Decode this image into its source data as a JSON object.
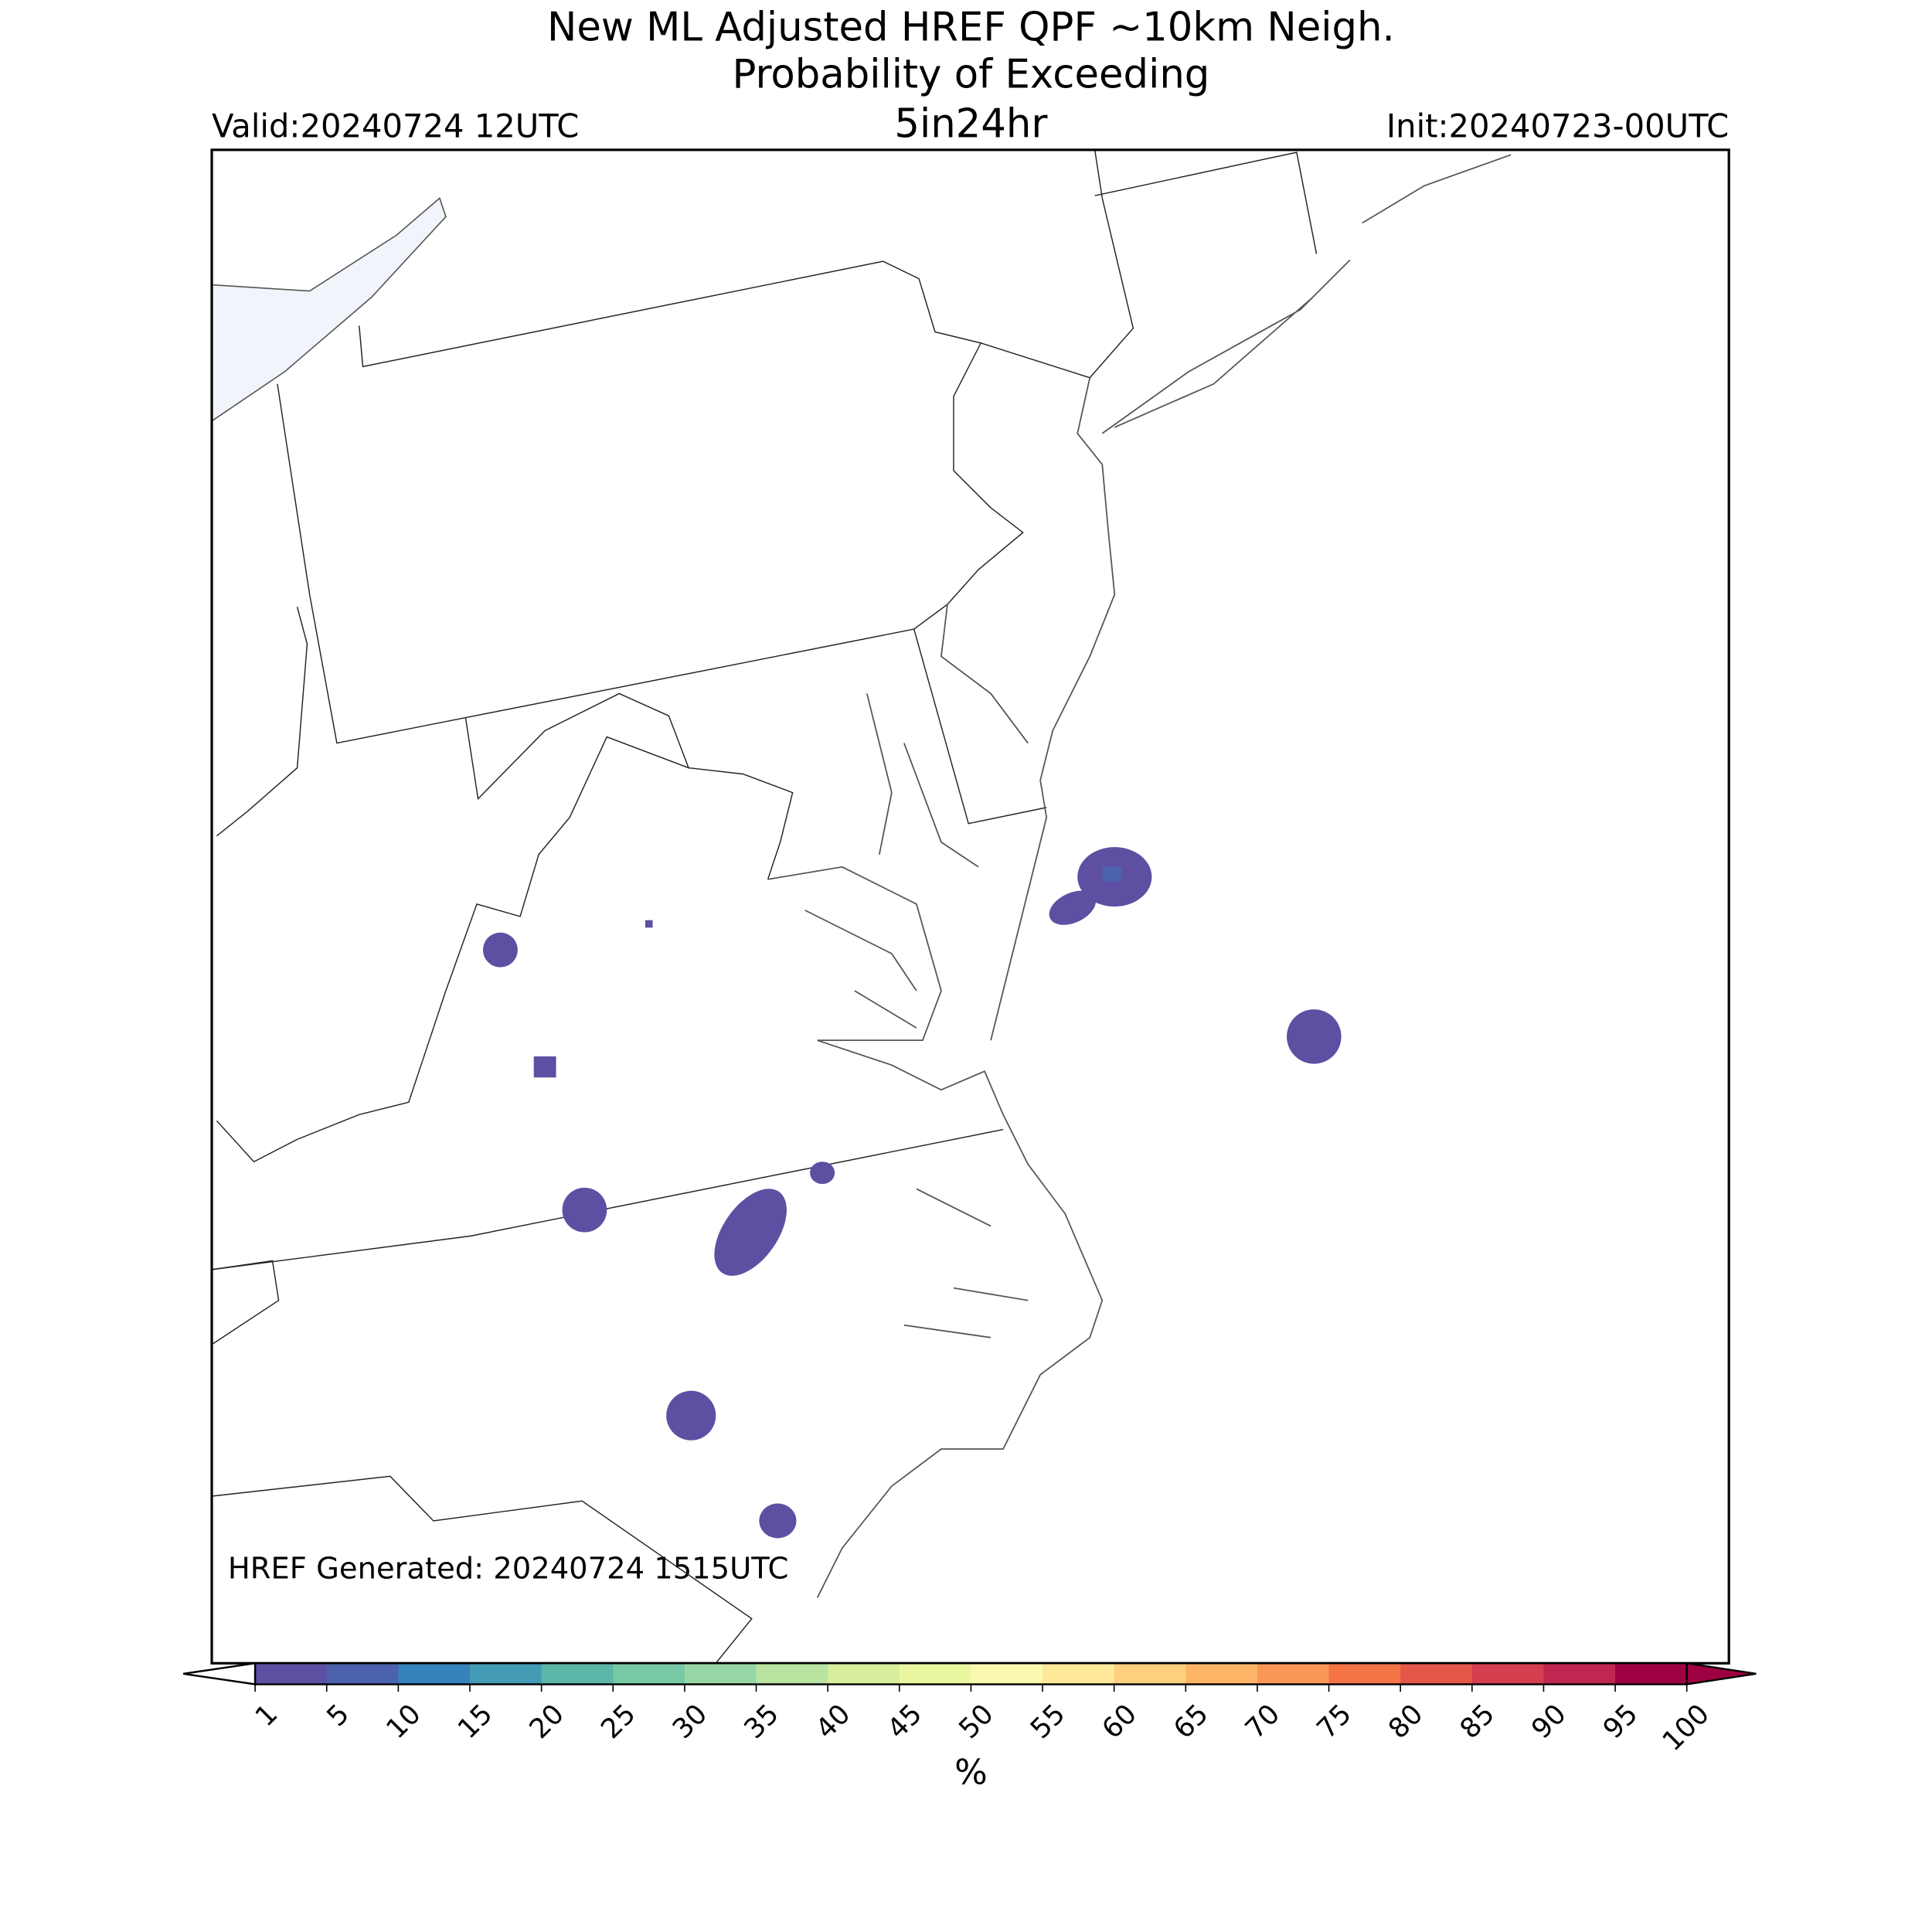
{
  "header": {
    "title": [
      "New ML Adjusted HREF QPF ~10km Neigh.",
      "Probability of Exceeding"
    ],
    "threshold": "5in24hr",
    "valid": "Valid:20240724 12UTC",
    "init": "Init:20240723-00UTC"
  },
  "map": {
    "generated": "HREF Generated: 20240724 1515UTC"
  },
  "colorbar": {
    "ticks": [
      1,
      5,
      10,
      15,
      20,
      25,
      30,
      35,
      40,
      45,
      50,
      55,
      60,
      65,
      70,
      75,
      80,
      85,
      90,
      95,
      100
    ],
    "colors": [
      "#5e4fa2",
      "#4c62ad",
      "#3682ba",
      "#439bb5",
      "#5cb7a9",
      "#77c8a4",
      "#98d5a4",
      "#b9e3a1",
      "#d6ee9b",
      "#ebf7a0",
      "#fbf8b0",
      "#fee89a",
      "#fed07e",
      "#fdb466",
      "#fa9656",
      "#f47446",
      "#e55749",
      "#d53e4f",
      "#bf2651",
      "#9e0142"
    ],
    "under_color": "#ffffff",
    "over_color": "#9e0142",
    "label": "%"
  }
}
